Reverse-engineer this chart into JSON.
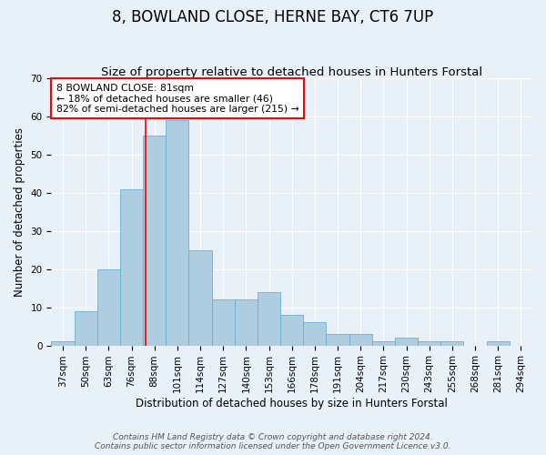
{
  "title": "8, BOWLAND CLOSE, HERNE BAY, CT6 7UP",
  "subtitle": "Size of property relative to detached houses in Hunters Forstal",
  "xlabel": "Distribution of detached houses by size in Hunters Forstal",
  "ylabel": "Number of detached properties",
  "bin_labels": [
    "37sqm",
    "50sqm",
    "63sqm",
    "76sqm",
    "88sqm",
    "101sqm",
    "114sqm",
    "127sqm",
    "140sqm",
    "153sqm",
    "166sqm",
    "178sqm",
    "191sqm",
    "204sqm",
    "217sqm",
    "230sqm",
    "243sqm",
    "255sqm",
    "268sqm",
    "281sqm",
    "294sqm"
  ],
  "bar_values": [
    1,
    9,
    20,
    41,
    55,
    59,
    25,
    12,
    12,
    14,
    8,
    6,
    3,
    3,
    1,
    2,
    1,
    1,
    0,
    1,
    0
  ],
  "bar_color": "#aecde1",
  "bar_edge_color": "#6aafd4",
  "ylim": [
    0,
    70
  ],
  "yticks": [
    0,
    10,
    20,
    30,
    40,
    50,
    60,
    70
  ],
  "red_line_x": 3.62,
  "annotation_text": "8 BOWLAND CLOSE: 81sqm\n← 18% of detached houses are smaller (46)\n82% of semi-detached houses are larger (215) →",
  "footer_line1": "Contains HM Land Registry data © Crown copyright and database right 2024.",
  "footer_line2": "Contains public sector information licensed under the Open Government Licence v3.0.",
  "bg_color": "#e8f0f8",
  "grid_color": "#ffffff",
  "title_fontsize": 12,
  "subtitle_fontsize": 9.5,
  "axis_label_fontsize": 8.5,
  "tick_fontsize": 7.5,
  "footer_fontsize": 6.5
}
